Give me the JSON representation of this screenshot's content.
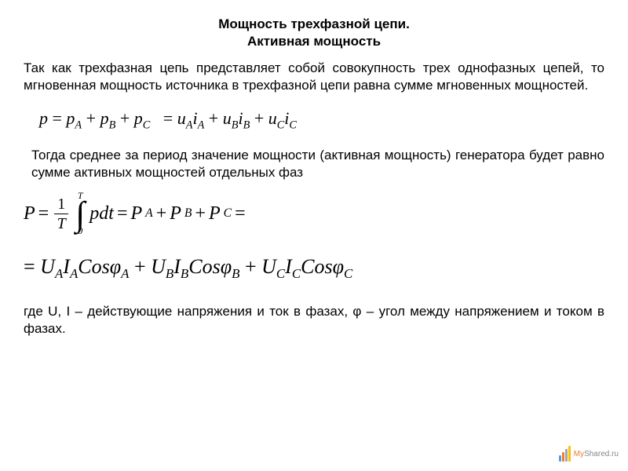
{
  "title_line1": "Мощность трехфазной цепи.",
  "title_line2": "Активная мощность",
  "paragraph1": "Так как трехфазная цепь представляет собой совокупность трех однофазных цепей, то мгновенная мощность источника в трехфазной цепи равна сумме мгновенных мощностей.",
  "formula1_parts": {
    "p": "p",
    "eq": " = ",
    "pA": "p",
    "A": "A",
    "plus": " + ",
    "pB": "p",
    "B": "B",
    "pC": "p",
    "C": "C",
    "eq2": " = ",
    "uA": "u",
    "iA": "i",
    "uB": "u",
    "iB": "i",
    "uC": "u",
    "iC": "i"
  },
  "paragraph2": "Тогда среднее за период значение мощности (активная мощность) генератора будет равно сумме активных мощностей отдельных фаз",
  "formula2": {
    "P": "P",
    "one": "1",
    "T": "T",
    "T_up": "T",
    "zero": "0",
    "pdt": "pdt",
    "PA": "P",
    "A": "A",
    "PB": "P",
    "B": "B",
    "PC": "P",
    "C": "C",
    "eq": " = "
  },
  "formula3": {
    "UA": "U",
    "IA": "I",
    "Cos": "Cos",
    "phi": "φ",
    "A": "A",
    "B": "B",
    "C": "C",
    "plus": " + "
  },
  "paragraph3": "где U, I – действующие напряжения и ток в фазах, φ – угол между напряжением и током в фазах.",
  "logo": {
    "my": "My",
    "shared": "Shared.ru"
  },
  "colors": {
    "text": "#000000",
    "background": "#ffffff"
  }
}
